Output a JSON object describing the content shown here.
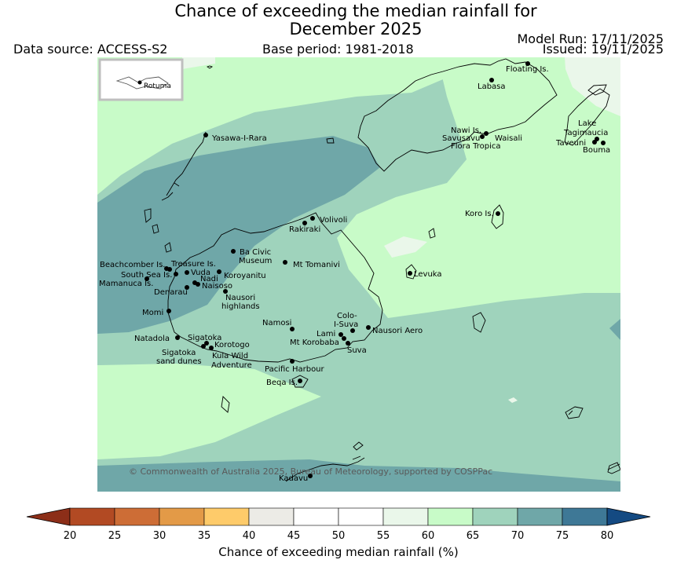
{
  "header": {
    "title_line1": "Chance of exceeding the median rainfall for",
    "title_line2": "December 2025",
    "data_source": "Data source: ACCESS-S2",
    "base_period": "Base period: 1981-2018",
    "model_run": "Model Run: 17/11/2025",
    "issued": "Issued: 19/11/2025"
  },
  "map": {
    "inset_label": "Rotuma",
    "copyright": "© Commonwealth of Australia 2025, Bureau of Meteorology, supported by COSPPac",
    "places": {
      "floating": "Floating Is.",
      "labasa": "Labasa",
      "nawi": "Nawi Is.",
      "savusavu": "Savusavu",
      "waisali": "Waisali",
      "flora": "Flora Tropica",
      "lake": "Lake",
      "tagimaucia": "Tagimaucia",
      "taveuni": "Taveuni",
      "bouma": "Bouma",
      "yasawa": "Yasawa-I-Rara",
      "koro": "Koro Is.",
      "volivoli": "Volivoli",
      "rakiraki": "Rakiraki",
      "baciviclabel1": "Ba Civic",
      "baciviclabel2": "Museum",
      "beachcomber": "Beachcomber Is.",
      "treasure": "Treasure Is.",
      "tomanivi": "Mt Tomanivi",
      "levuka": "Levuka",
      "southsea": "South Sea Is.",
      "vuda": "Vuda",
      "koroyanitu": "Koroyanitu",
      "nadi": "Nadi",
      "mamanuca": "Mamanuca Is.",
      "naisoso": "Naisoso",
      "denarau": "Denarau",
      "nausori1": "Nausori",
      "nausori2": "highlands",
      "momi": "Momi",
      "namosi": "Namosi",
      "colo1": "Colo-",
      "colo2": "I-Suva",
      "natadola": "Natadola",
      "sigatoka": "Sigatoka",
      "lami": "Lami",
      "nausoriaero": "Nausori Aero",
      "korobaba": "Mt Korobaba",
      "korotogo": "Korotogo",
      "suva": "Suva",
      "sigdunes1": "Sigatoka",
      "sigdunes2": "sand dunes",
      "kula1": "Kula Wild",
      "kula2": "Adventure",
      "pacific": "Pacific Harbour",
      "beqa": "Beqa Is.",
      "kadavu": "Kadavu"
    },
    "category_colors": {
      "55-60": "#eaf7ea",
      "60-65": "#c8fbc8",
      "65-70": "#9fd3bc",
      "70-75": "#6fa7a8"
    }
  },
  "colorbar": {
    "label": "Chance of exceeding median rainfall (%)",
    "ticks": [
      "20",
      "25",
      "30",
      "35",
      "40",
      "45",
      "50",
      "55",
      "60",
      "65",
      "70",
      "75",
      "80"
    ],
    "colors": [
      "#b24a23",
      "#cd6d36",
      "#e39a47",
      "#fecb6a",
      "#ecebe6",
      "#ffffff",
      "#ffffff",
      "#eaf7ea",
      "#c8fbc8",
      "#9fd3bc",
      "#6fa7a8",
      "#3e7896"
    ],
    "under_color": "#8c2e18",
    "over_color": "#144a82"
  }
}
